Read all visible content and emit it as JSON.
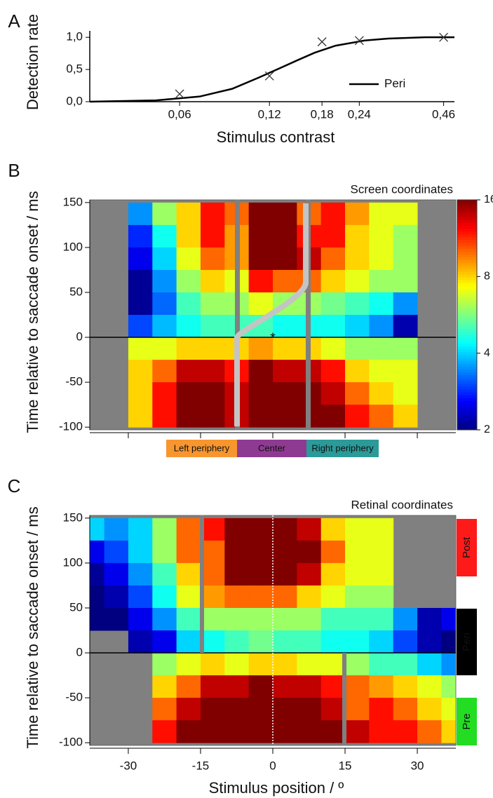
{
  "chart_data": [
    {
      "type": "line",
      "panel": "A",
      "xlabel": "Stimulus contrast",
      "ylabel": "Detection rate",
      "log_x": true,
      "xlim": [
        0.03,
        0.5
      ],
      "ylim": [
        0,
        1.1
      ],
      "xticks": [
        {
          "value": 0.06,
          "label": "0,06"
        },
        {
          "value": 0.12,
          "label": "0,12"
        },
        {
          "value": 0.18,
          "label": "0,18"
        },
        {
          "value": 0.24,
          "label": "0,24"
        },
        {
          "value": 0.46,
          "label": "0,46"
        }
      ],
      "yticks": [
        {
          "value": 0,
          "label": "0,0"
        },
        {
          "value": 0.5,
          "label": "0,5"
        },
        {
          "value": 1.0,
          "label": "1,0"
        }
      ],
      "series": [
        {
          "name": "Peri",
          "color": "#000000",
          "x": [
            0.03,
            0.05,
            0.07,
            0.09,
            0.11,
            0.13,
            0.15,
            0.17,
            0.2,
            0.25,
            0.3,
            0.4,
            0.5
          ],
          "values": [
            0.0,
            0.02,
            0.08,
            0.2,
            0.37,
            0.52,
            0.65,
            0.76,
            0.87,
            0.95,
            0.98,
            1.0,
            1.0
          ]
        }
      ],
      "points": {
        "x": [
          0.06,
          0.12,
          0.18,
          0.24,
          0.46
        ],
        "values": [
          0.12,
          0.4,
          0.93,
          0.95,
          1.0
        ],
        "color": "#333333"
      },
      "legend": "lower right"
    },
    {
      "type": "heatmap",
      "panel": "B",
      "title": "Screen coordinates",
      "ylabel": "Time relative to saccade onset / ms",
      "xlim": [
        -38,
        38
      ],
      "ylim": [
        -103,
        153
      ],
      "xticks": [
        -30,
        -15,
        0,
        15,
        30
      ],
      "yticks": [
        -100,
        -50,
        0,
        50,
        100,
        150
      ],
      "colormap": "jet_r",
      "clim": [
        2,
        16
      ],
      "cticks": [
        2,
        4,
        8,
        16
      ],
      "log_color": true,
      "regions": [
        {
          "label": "Left periphery",
          "color": "#f7962f"
        },
        {
          "label": "Center",
          "color": "#8e3a92"
        },
        {
          "label": "Right periphery",
          "color": "#2b9a98"
        }
      ],
      "x": [
        -37.5,
        -32.5,
        -27.5,
        -22.5,
        -17.5,
        -12.5,
        -7.5,
        -2.5,
        2.5,
        7.5,
        12.5,
        17.5,
        22.5,
        27.5,
        32.5,
        37.5
      ],
      "y": [
        137.5,
        112.5,
        87.5,
        62.5,
        37.5,
        12.5,
        -12.5,
        -37.5,
        -62.5,
        -87.5
      ],
      "values": [
        [
          null,
          null,
          3.5,
          6,
          8,
          12,
          10,
          16,
          16,
          10,
          12,
          9,
          7,
          7,
          null,
          null
        ],
        [
          null,
          null,
          2.8,
          4.5,
          8,
          12,
          9,
          16,
          16,
          12,
          12,
          8,
          7,
          6,
          null,
          null
        ],
        [
          null,
          null,
          2.5,
          4,
          7,
          10,
          9,
          16,
          16,
          14,
          10,
          8,
          7,
          6,
          null,
          null
        ],
        [
          null,
          null,
          2.1,
          3.5,
          6,
          8,
          7,
          12,
          10,
          10,
          8,
          7,
          6,
          6,
          null,
          null
        ],
        [
          null,
          null,
          2.1,
          3.2,
          5,
          6,
          6,
          7,
          6,
          6,
          5.5,
          5,
          4.5,
          3.5,
          null,
          null
        ],
        [
          null,
          null,
          3,
          3.8,
          4.5,
          5,
          5,
          5,
          4.5,
          4.5,
          4.5,
          4,
          3.5,
          2.2,
          null,
          null
        ],
        [
          null,
          null,
          7,
          7,
          8,
          8,
          8,
          9,
          8,
          8,
          7,
          6,
          6,
          6,
          null,
          null
        ],
        [
          null,
          null,
          8,
          10,
          14,
          14,
          12,
          16,
          14,
          14,
          12,
          8,
          7,
          7,
          null,
          null
        ],
        [
          null,
          null,
          8,
          12,
          16,
          16,
          14,
          16,
          16,
          16,
          14,
          10,
          8,
          7,
          null,
          null
        ],
        [
          null,
          null,
          8,
          12,
          16,
          16,
          14,
          16,
          16,
          16,
          16,
          12,
          10,
          8,
          null,
          null
        ]
      ]
    },
    {
      "type": "heatmap",
      "panel": "C",
      "title": "Retinal coordinates",
      "ylabel": "Time relative to saccade onset / ms",
      "xlabel": "Stimulus position / º",
      "xlim": [
        -38,
        38
      ],
      "ylim": [
        -103,
        153
      ],
      "xticks": [
        -30,
        -15,
        0,
        15,
        30
      ],
      "yticks": [
        -100,
        -50,
        0,
        50,
        100,
        150
      ],
      "colormap": "jet_r",
      "clim": [
        2,
        16
      ],
      "log_color": true,
      "phases": [
        {
          "label": "Post",
          "color": "#ff1a1a"
        },
        {
          "label": "Peri",
          "color": "#000000"
        },
        {
          "label": "Pre",
          "color": "#22dd22"
        }
      ],
      "x": [
        -37.5,
        -32.5,
        -27.5,
        -22.5,
        -17.5,
        -12.5,
        -7.5,
        -2.5,
        2.5,
        7.5,
        12.5,
        17.5,
        22.5,
        27.5,
        32.5,
        37.5
      ],
      "y": [
        137.5,
        112.5,
        87.5,
        62.5,
        37.5,
        12.5,
        -12.5,
        -37.5,
        -62.5,
        -87.5
      ],
      "values": [
        [
          4,
          3.5,
          4,
          6,
          10,
          12,
          16,
          16,
          16,
          14,
          8,
          7,
          7,
          null,
          null,
          null
        ],
        [
          2.5,
          3,
          4,
          6,
          10,
          10,
          16,
          16,
          16,
          16,
          10,
          7,
          7,
          null,
          null,
          null
        ],
        [
          2.1,
          2.5,
          3.5,
          5,
          8,
          10,
          16,
          16,
          16,
          14,
          8,
          7,
          7,
          null,
          null,
          null
        ],
        [
          2,
          2.2,
          3,
          4.5,
          7,
          9,
          10,
          10,
          10,
          8,
          7,
          6,
          6,
          null,
          null,
          null
        ],
        [
          2,
          2,
          2.5,
          3.5,
          5,
          6,
          6,
          6,
          6,
          6,
          5,
          5,
          5,
          3.5,
          2.2,
          2.5
        ],
        [
          null,
          null,
          2.2,
          2.5,
          4,
          4.5,
          5,
          5.5,
          5,
          5,
          4.5,
          4.5,
          4,
          3,
          2.2,
          2
        ],
        [
          null,
          null,
          null,
          6,
          7,
          8,
          7,
          8,
          8,
          7,
          7,
          6,
          5,
          5,
          4,
          3.5
        ],
        [
          null,
          null,
          null,
          8,
          10,
          14,
          14,
          16,
          14,
          14,
          12,
          10,
          9,
          8,
          7,
          6
        ],
        [
          null,
          null,
          null,
          10,
          14,
          16,
          16,
          16,
          16,
          16,
          14,
          10,
          12,
          10,
          8,
          7
        ],
        [
          null,
          null,
          null,
          12,
          16,
          16,
          16,
          16,
          16,
          16,
          16,
          14,
          12,
          12,
          10,
          8
        ]
      ]
    }
  ]
}
